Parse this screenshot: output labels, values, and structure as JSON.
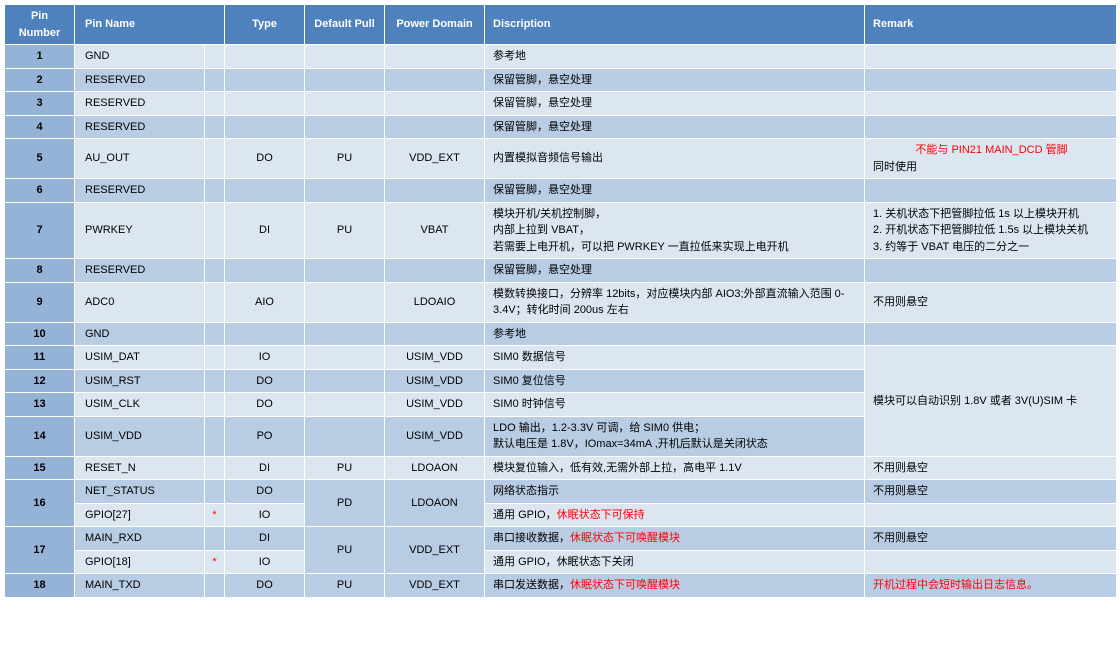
{
  "headers": {
    "pin_number": "Pin Number",
    "pin_name": "Pin Name",
    "type": "Type",
    "default_pull": "Default Pull",
    "power_domain": "Power Domain",
    "discription": "Discription",
    "remark": "Remark"
  },
  "colors": {
    "header_bg": "#4f81bd",
    "pin_num_bg": "#95b3d7",
    "row_odd_bg": "#dce6f1",
    "row_even_bg": "#b8cce4",
    "border": "#ffffff",
    "red_text": "#ff0000"
  },
  "rows": [
    {
      "num": "1",
      "name": "GND",
      "ast": "",
      "type": "",
      "pull": "",
      "domain": "",
      "desc": "参考地",
      "remark": ""
    },
    {
      "num": "2",
      "name": "RESERVED",
      "ast": "",
      "type": "",
      "pull": "",
      "domain": "",
      "desc": "保留管脚，悬空处理",
      "remark": ""
    },
    {
      "num": "3",
      "name": "RESERVED",
      "ast": "",
      "type": "",
      "pull": "",
      "domain": "",
      "desc": "保留管脚，悬空处理",
      "remark": ""
    },
    {
      "num": "4",
      "name": "RESERVED",
      "ast": "",
      "type": "",
      "pull": "",
      "domain": "",
      "desc": "保留管脚，悬空处理",
      "remark": ""
    },
    {
      "num": "5",
      "name": "AU_OUT",
      "ast": "",
      "type": "DO",
      "pull": "PU",
      "domain": "VDD_EXT",
      "desc": "内置模拟音频信号输出",
      "remark": "",
      "remark_red_prefix": "不能与 PIN21 MAIN_DCD 管脚",
      "remark_suffix": "同时使用"
    },
    {
      "num": "6",
      "name": "RESERVED",
      "ast": "",
      "type": "",
      "pull": "",
      "domain": "",
      "desc": "保留管脚，悬空处理",
      "remark": ""
    },
    {
      "num": "7",
      "name": "PWRKEY",
      "ast": "",
      "type": "DI",
      "pull": "PU",
      "domain": "VBAT",
      "desc": "模块开机/关机控制脚，\n内部上拉到 VBAT，\n若需要上电开机，可以把 PWRKEY 一直拉低来实现上电开机",
      "remark": "1. 关机状态下把管脚拉低 1s 以上模块开机\n2. 开机状态下把管脚拉低 1.5s 以上模块关机\n3. 约等于 VBAT 电压的二分之一"
    },
    {
      "num": "8",
      "name": "RESERVED",
      "ast": "",
      "type": "",
      "pull": "",
      "domain": "",
      "desc": "保留管脚，悬空处理",
      "remark": ""
    },
    {
      "num": "9",
      "name": "ADC0",
      "ast": "",
      "type": "AIO",
      "pull": "",
      "domain": "LDOAIO",
      "desc": "模数转换接口，分辨率 12bits，对应模块内部 AIO3;外部直流输入范围 0-3.4V；转化时间 200us 左右",
      "remark": "不用则悬空"
    },
    {
      "num": "10",
      "name": "GND",
      "ast": "",
      "type": "",
      "pull": "",
      "domain": "",
      "desc": "参考地",
      "remark": ""
    },
    {
      "num": "11",
      "name": "USIM_DAT",
      "ast": "",
      "type": "IO",
      "pull": "",
      "domain": "USIM_VDD",
      "desc": "SIM0 数据信号",
      "remark": "",
      "merge_remark_start": true
    },
    {
      "num": "12",
      "name": "USIM_RST",
      "ast": "",
      "type": "DO",
      "pull": "",
      "domain": "USIM_VDD",
      "desc": "SIM0 复位信号",
      "remark": "",
      "merge_remark_skip": true
    },
    {
      "num": "13",
      "name": "USIM_CLK",
      "ast": "",
      "type": "DO",
      "pull": "",
      "domain": "USIM_VDD",
      "desc": "SIM0 时钟信号",
      "remark": "",
      "merge_remark_skip": true
    },
    {
      "num": "14",
      "name": "USIM_VDD",
      "ast": "",
      "type": "PO",
      "pull": "",
      "domain": "USIM_VDD",
      "desc": "LDO 输出，1.2-3.3V 可调，给 SIM0 供电；\n默认电压是 1.8V，IOmax=34mA ,开机后默认是关闭状态",
      "remark": "",
      "merge_remark_skip": true
    },
    {
      "num": "15",
      "name": "RESET_N",
      "ast": "",
      "type": "DI",
      "pull": "PU",
      "domain": "LDOAON",
      "desc": "模块复位输入，低有效,无需外部上拉，高电平 1.1V",
      "remark": "不用则悬空"
    },
    {
      "num": "16",
      "name": "NET_STATUS",
      "ast": "",
      "type": "DO",
      "pull": "PD",
      "domain": "LDOAON",
      "desc": "网络状态指示",
      "remark": "不用则悬空",
      "merge_num_start": true,
      "merge_pull_start": true,
      "merge_domain_start": true
    },
    {
      "num": "",
      "name": "GPIO[27]",
      "ast": "*",
      "type": "IO",
      "pull": "",
      "domain": "",
      "desc": "通用 GPIO，",
      "desc_red": "休眠状态下可保持",
      "remark": "",
      "merge_num_skip": true,
      "merge_pull_skip": true,
      "merge_domain_skip": true
    },
    {
      "num": "17",
      "name": "MAIN_RXD",
      "ast": "",
      "type": "DI",
      "pull": "PU",
      "domain": "VDD_EXT",
      "desc": "串口接收数据，",
      "desc_red": "休眠状态下可唤醒模块",
      "remark": "不用则悬空",
      "merge_num_start": true,
      "merge_pull_start": true,
      "merge_domain_start": true
    },
    {
      "num": "",
      "name": "GPIO[18]",
      "ast": "*",
      "type": "IO",
      "pull": "",
      "domain": "",
      "desc": "通用 GPIO，休眠状态下关闭",
      "remark": "",
      "merge_num_skip": true,
      "merge_pull_skip": true,
      "merge_domain_skip": true
    },
    {
      "num": "18",
      "name": "MAIN_TXD",
      "ast": "",
      "type": "DO",
      "pull": "PU",
      "domain": "VDD_EXT",
      "desc": "串口发送数据，",
      "desc_red": "休眠状态下可唤醒模块",
      "remark": "",
      "remark_red_prefix": "开机过程中会短时输出日志信息。"
    }
  ],
  "merged_remark_11_14": "模块可以自动识别 1.8V 或者 3V(U)SIM 卡"
}
